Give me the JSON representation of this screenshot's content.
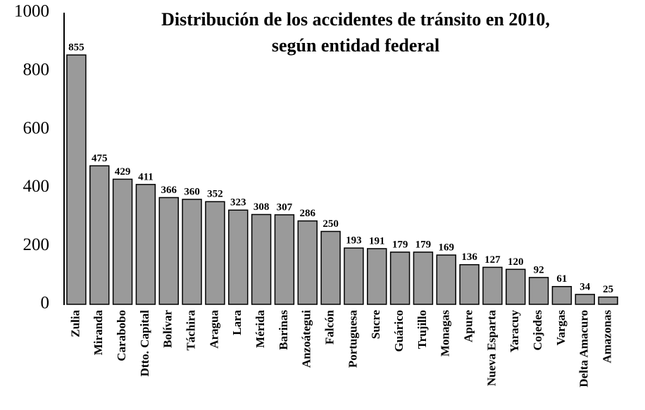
{
  "chart_data": {
    "type": "bar",
    "title": [
      "Distribución de los accidentes de tránsito en 2010,",
      "según entidad federal"
    ],
    "categories": [
      "Zulia",
      "Miranda",
      "Carabobo",
      "Dtto. Capital",
      "Bolívar",
      "Táchira",
      "Aragua",
      "Lara",
      "Mérida",
      "Barinas",
      "Anzoátegui",
      "Falcón",
      "Portuguesa",
      "Sucre",
      "Guárico",
      "Trujillo",
      "Monagas",
      "Apure",
      "Nueva Esparta",
      "Yaracuy",
      "Cojedes",
      "Vargas",
      "Delta Amacuro",
      "Amazonas"
    ],
    "values": [
      855,
      475,
      429,
      411,
      366,
      360,
      352,
      323,
      308,
      307,
      286,
      250,
      193,
      191,
      179,
      179,
      169,
      136,
      127,
      120,
      92,
      61,
      34,
      25
    ],
    "color": "#9a9a9a",
    "ylim": [
      0,
      1000
    ],
    "yticks": [
      0,
      200,
      400,
      600,
      800,
      1000
    ],
    "grid": false
  }
}
